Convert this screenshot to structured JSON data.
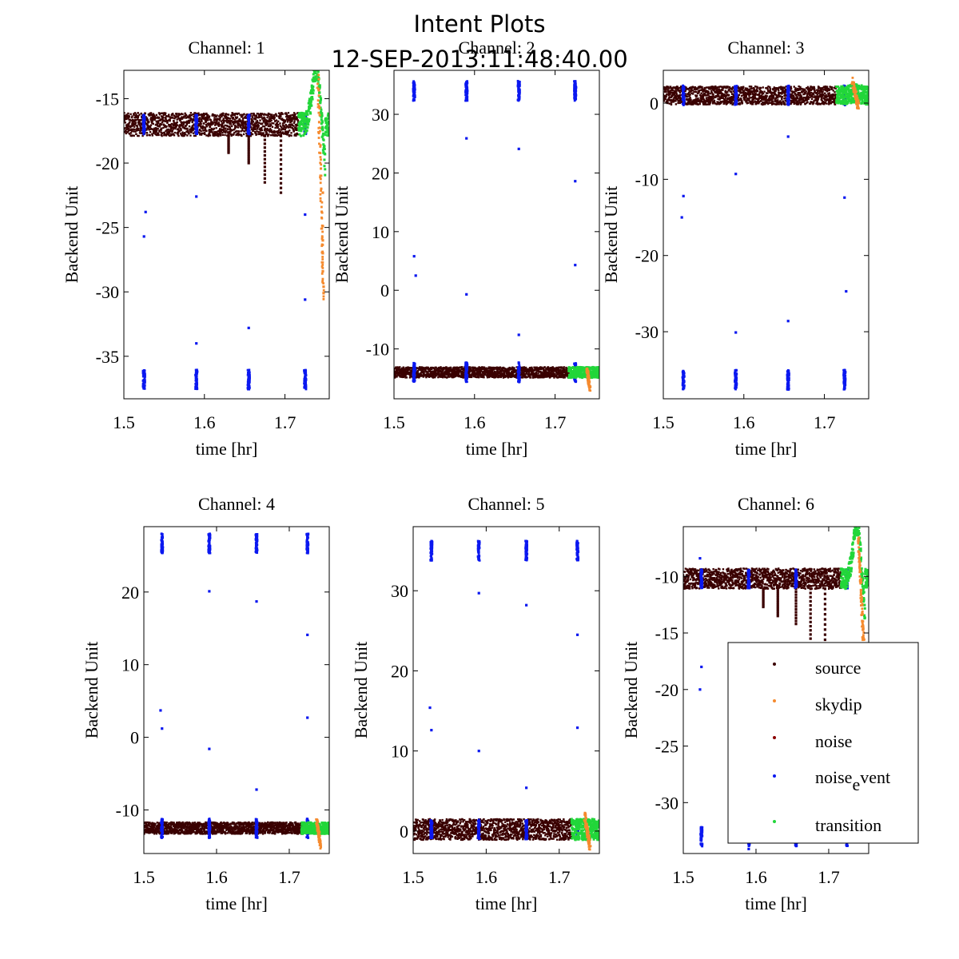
{
  "figure": {
    "title": "Intent Plots",
    "subtitle": "12-SEP-2013:11:48:40.00"
  },
  "colors": {
    "source": "#3a0000",
    "skydip": "#f58a2e",
    "noise": "#8b0000",
    "noise_event": "#0b18f0",
    "transition": "#22d63a"
  },
  "legend": {
    "placement": "inside-right of Channel 6",
    "entries": [
      {
        "key": "source",
        "label": "source"
      },
      {
        "key": "skydip",
        "label": "skydip"
      },
      {
        "key": "noise",
        "label": "noise"
      },
      {
        "key": "noise_event",
        "label": "noise",
        "sub": "e",
        "label_rest": "vent"
      },
      {
        "key": "transition",
        "label": "transition"
      }
    ]
  },
  "chart_data": [
    {
      "type": "scatter",
      "title": "Channel: 1",
      "xlabel": "time [hr]",
      "ylabel": "Backend Unit",
      "xlim": [
        1.5,
        1.755
      ],
      "ylim": [
        -38.3,
        -12.8
      ],
      "xticks": [
        1.5,
        1.6,
        1.7
      ],
      "yticks": [
        -15,
        -20,
        -25,
        -30,
        -35
      ],
      "baseline": -17.0,
      "band_halfwidth": 0.9,
      "noise_event_times": [
        1.525,
        1.59,
        1.655,
        1.725
      ],
      "noise_event_upper": -17.0,
      "noise_event_lower": -36.8,
      "dips": [
        [
          1.63,
          -19.2
        ],
        [
          1.655,
          -20.0
        ],
        [
          1.675,
          -21.5
        ],
        [
          1.695,
          -22.3
        ]
      ],
      "outliers": [
        [
          1.527,
          -23.8
        ],
        [
          1.525,
          -25.7
        ],
        [
          1.59,
          -22.6
        ],
        [
          1.59,
          -34.0
        ],
        [
          1.655,
          -32.8
        ],
        [
          1.725,
          -24.0
        ],
        [
          1.725,
          -30.6
        ]
      ],
      "transition": {
        "start": 1.717,
        "peak_x": 1.737,
        "peak_y": -12.8,
        "end_y": -20.3
      },
      "skydip_tail": {
        "x0": 1.741,
        "x1": 1.748,
        "y0": -13.5,
        "y1": -30.2
      },
      "skydip_scatter": [
        [
          1.747,
          -22.3
        ],
        [
          1.747,
          -24.9
        ],
        [
          1.747,
          -26.0
        ],
        [
          1.747,
          -27.0
        ],
        [
          1.747,
          -28.4
        ],
        [
          1.748,
          -29.6
        ],
        [
          1.748,
          -30.1
        ]
      ]
    },
    {
      "type": "scatter",
      "title": "Channel: 2",
      "xlabel": "time [hr]",
      "ylabel": "Backend Unit",
      "xlim": [
        1.5,
        1.755
      ],
      "ylim": [
        -18.5,
        37.5
      ],
      "xticks": [
        1.5,
        1.6,
        1.7
      ],
      "yticks": [
        30,
        20,
        10,
        0,
        -10
      ],
      "baseline": -14.0,
      "band_halfwidth": 0.9,
      "noise_event_times": [
        1.525,
        1.59,
        1.655,
        1.725
      ],
      "noise_event_upper": 34.0,
      "noise_event_lower": -14.0,
      "dips": [],
      "outliers": [
        [
          1.525,
          5.8
        ],
        [
          1.527,
          2.5
        ],
        [
          1.59,
          25.9
        ],
        [
          1.59,
          -0.7
        ],
        [
          1.655,
          24.1
        ],
        [
          1.655,
          -7.6
        ],
        [
          1.725,
          18.6
        ],
        [
          1.725,
          4.3
        ]
      ],
      "transition": {
        "start": 1.717,
        "peak_x": 1.737,
        "peak_y": -14.0,
        "end_y": -14.0
      },
      "skydip_tail": {
        "x0": 1.74,
        "x1": 1.743,
        "y0": -13.5,
        "y1": -16.8
      },
      "skydip_scatter": []
    },
    {
      "type": "scatter",
      "title": "Channel: 3",
      "xlabel": "time [hr]",
      "ylabel": "Backend Unit",
      "xlim": [
        1.5,
        1.755
      ],
      "ylim": [
        -38.8,
        4.3
      ],
      "xticks": [
        1.5,
        1.6,
        1.7
      ],
      "yticks": [
        0,
        -10,
        -20,
        -30
      ],
      "baseline": 1.0,
      "band_halfwidth": 1.2,
      "noise_event_times": [
        1.525,
        1.59,
        1.655,
        1.725
      ],
      "noise_event_upper": 1.0,
      "noise_event_lower": -36.3,
      "dips": [],
      "outliers": [
        [
          1.525,
          -12.2
        ],
        [
          1.523,
          -15.0
        ],
        [
          1.59,
          -9.3
        ],
        [
          1.59,
          -30.1
        ],
        [
          1.655,
          -4.4
        ],
        [
          1.655,
          -28.6
        ],
        [
          1.725,
          -12.4
        ],
        [
          1.727,
          -24.7
        ]
      ],
      "transition": {
        "start": 1.715,
        "peak_x": 1.737,
        "peak_y": 1.3,
        "end_y": 1.0
      },
      "skydip_tail": {
        "x0": 1.735,
        "x1": 1.742,
        "y0": 3.0,
        "y1": -0.5
      },
      "skydip_scatter": []
    },
    {
      "type": "scatter",
      "title": "Channel: 4",
      "xlabel": "time [hr]",
      "ylabel": "Backend Unit",
      "xlim": [
        1.5,
        1.755
      ],
      "ylim": [
        -16.0,
        29.0
      ],
      "xticks": [
        1.5,
        1.6,
        1.7
      ],
      "yticks": [
        20,
        10,
        0,
        -10
      ],
      "baseline": -12.5,
      "band_halfwidth": 0.8,
      "noise_event_times": [
        1.525,
        1.59,
        1.655,
        1.725
      ],
      "noise_event_upper": 26.7,
      "noise_event_lower": -12.5,
      "dips": [],
      "outliers": [
        [
          1.523,
          3.7
        ],
        [
          1.525,
          1.2
        ],
        [
          1.59,
          20.1
        ],
        [
          1.59,
          -1.6
        ],
        [
          1.655,
          18.7
        ],
        [
          1.655,
          -7.2
        ],
        [
          1.725,
          14.1
        ],
        [
          1.725,
          2.7
        ]
      ],
      "transition": {
        "start": 1.717,
        "peak_x": 1.737,
        "peak_y": -12.5,
        "end_y": -12.5
      },
      "skydip_tail": {
        "x0": 1.738,
        "x1": 1.743,
        "y0": -11.5,
        "y1": -15.0
      },
      "skydip_scatter": []
    },
    {
      "type": "scatter",
      "title": "Channel: 5",
      "xlabel": "time [hr]",
      "ylabel": "Backend Unit",
      "xlim": [
        1.5,
        1.755
      ],
      "ylim": [
        -2.8,
        38.0
      ],
      "xticks": [
        1.5,
        1.6,
        1.7
      ],
      "yticks": [
        30,
        20,
        10,
        0
      ],
      "baseline": 0.2,
      "band_halfwidth": 1.3,
      "noise_event_times": [
        1.525,
        1.59,
        1.655,
        1.725
      ],
      "noise_event_upper": 35.0,
      "noise_event_lower": 0.2,
      "dips": [],
      "outliers": [
        [
          1.523,
          15.4
        ],
        [
          1.525,
          12.6
        ],
        [
          1.59,
          29.7
        ],
        [
          1.59,
          10.0
        ],
        [
          1.655,
          28.2
        ],
        [
          1.655,
          5.4
        ],
        [
          1.725,
          24.5
        ],
        [
          1.725,
          12.9
        ]
      ],
      "transition": {
        "start": 1.717,
        "peak_x": 1.737,
        "peak_y": 0.2,
        "end_y": 0.2
      },
      "skydip_tail": {
        "x0": 1.735,
        "x1": 1.742,
        "y0": 1.8,
        "y1": -1.8
      },
      "skydip_scatter": []
    },
    {
      "type": "scatter",
      "title": "Channel: 6",
      "xlabel": "time [hr]",
      "ylabel": "Backend Unit",
      "xlim": [
        1.5,
        1.755
      ],
      "ylim": [
        -34.5,
        -5.6
      ],
      "xticks": [
        1.5,
        1.6,
        1.7
      ],
      "yticks": [
        -10,
        -15,
        -20,
        -25,
        -30
      ],
      "baseline": -10.2,
      "band_halfwidth": 0.9,
      "noise_event_times": [
        1.525,
        1.59,
        1.655,
        1.725
      ],
      "noise_event_upper": -10.2,
      "noise_event_lower": -33.0,
      "dips": [
        [
          1.61,
          -12.7
        ],
        [
          1.63,
          -13.5
        ],
        [
          1.655,
          -14.2
        ],
        [
          1.675,
          -15.5
        ],
        [
          1.695,
          -16.5
        ]
      ],
      "outliers": [
        [
          1.523,
          -8.4
        ],
        [
          1.525,
          -18.0
        ],
        [
          1.523,
          -20.0
        ],
        [
          1.59,
          -34.1
        ],
        [
          1.655,
          -33.8
        ]
      ],
      "transition": {
        "start": 1.717,
        "peak_x": 1.737,
        "peak_y": -5.6,
        "end_y": -13.5
      },
      "skydip_tail": {
        "x0": 1.741,
        "x1": 1.748,
        "y0": -6.5,
        "y1": -16.0
      },
      "skydip_scatter": [
        [
          1.747,
          -14.7
        ],
        [
          1.747,
          -15.6
        ],
        [
          1.748,
          -16.2
        ]
      ]
    }
  ]
}
